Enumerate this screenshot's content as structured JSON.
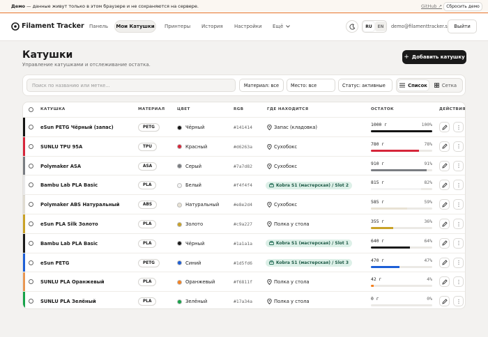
{
  "banner": {
    "label": "Демо",
    "text": "— данные живут только в этом браузере и не сохраняются на сервере.",
    "link": "GitHub ↗",
    "button": "Сбросить демо"
  },
  "nav": {
    "brand": "Filament Tracker",
    "items": [
      "Панель",
      "Мои Катушки",
      "Принтеры",
      "История",
      "Настройки",
      "Ещё"
    ],
    "active": 1,
    "languages": [
      "RU",
      "EN"
    ],
    "active_language": 0,
    "email": "demo@filamenttracker.su",
    "logout": "Выйти"
  },
  "header": {
    "title": "Катушки",
    "subtitle": "Управление катушками и отслеживание остатка.",
    "add_button": "Добавить катушку"
  },
  "filters": {
    "search_placeholder": "Поиск по названию или метке...",
    "material": "Материал: все",
    "location": "Место: все",
    "status": "Статус: активные",
    "views": [
      "Список",
      "Сетка"
    ],
    "active_view": 0
  },
  "table": {
    "columns": [
      "КАТУШКА",
      "МАТЕРИАЛ",
      "ЦВЕТ",
      "RGB",
      "ГДЕ НАХОДИТСЯ",
      "ОСТАТОК",
      "ДЕЙСТВИЯ"
    ],
    "rows": [
      {
        "name": "eSun PETG Чёрный (запас)",
        "material": "PETG",
        "color_name": "Чёрный",
        "rgb": "#141414",
        "location": "Запас (кладовка)",
        "remaining": "1000 г",
        "percent": 100,
        "percent_label": "100%"
      },
      {
        "name": "SUNLU TPU 95A",
        "material": "TPU",
        "color_name": "Красный",
        "rgb": "#d6263a",
        "location": "Сухобокс",
        "remaining": "780 г",
        "percent": 78,
        "percent_label": "78%"
      },
      {
        "name": "Polymaker ASA",
        "material": "ASA",
        "color_name": "Серый",
        "rgb": "#7a7d82",
        "location": "Сухобокс",
        "remaining": "910 г",
        "percent": 91,
        "percent_label": "91%"
      },
      {
        "name": "Bambu Lab PLA Basic",
        "material": "PLA",
        "color_name": "Белый",
        "rgb": "#f4f4f4",
        "printer": "Kobra S1 (мастерская) / Slot 2",
        "remaining": "815 г",
        "percent": 82,
        "percent_label": "82%"
      },
      {
        "name": "Polymaker ABS Натуральный",
        "material": "ABS",
        "color_name": "Натуральный",
        "rgb": "#e8e2d4",
        "location": "Сухобокс",
        "remaining": "585 г",
        "percent": 59,
        "percent_label": "59%"
      },
      {
        "name": "eSun PLA Silk Золото",
        "material": "PLA",
        "color_name": "Золото",
        "rgb": "#c9a227",
        "location": "Полка у стола",
        "remaining": "355 г",
        "percent": 36,
        "percent_label": "36%"
      },
      {
        "name": "Bambu Lab PLA Basic",
        "material": "PLA",
        "color_name": "Чёрный",
        "rgb": "#1a1a1a",
        "printer": "Kobra S1 (мастерская) / Slot 1",
        "remaining": "640 г",
        "percent": 64,
        "percent_label": "64%"
      },
      {
        "name": "eSun PETG",
        "material": "PETG",
        "color_name": "Синий",
        "rgb": "#1d5fd6",
        "printer": "Kobra S1 (мастерская) / Slot 3",
        "remaining": "470 г",
        "percent": 47,
        "percent_label": "47%"
      },
      {
        "name": "SUNLU PLA Оранжевый",
        "material": "PLA",
        "color_name": "Оранжевый",
        "rgb": "#f6811f",
        "location": "Полка у стола",
        "remaining": "42 г",
        "percent": 4,
        "percent_label": "4%"
      },
      {
        "name": "SUNLU PLA Зелёный",
        "material": "PLA",
        "color_name": "Зелёный",
        "rgb": "#17a34a",
        "location": "Полка у стола",
        "remaining": "0 г",
        "percent": 0,
        "percent_label": "0%"
      }
    ]
  }
}
